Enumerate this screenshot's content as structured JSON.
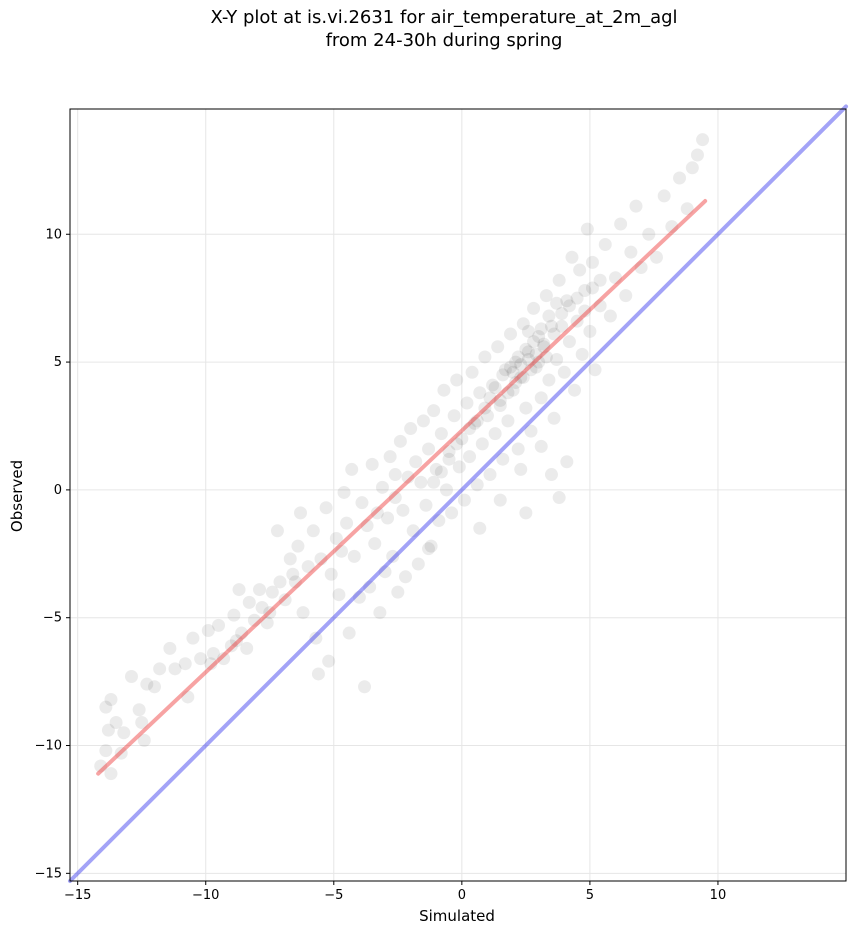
{
  "chart_data": {
    "type": "scatter",
    "title": "X-Y plot at is.vi.2631 for air_temperature_at_2m_agl",
    "subtitle": "from 24-30h during spring",
    "xlabel": "Simulated",
    "ylabel": "Observed",
    "xlim": [
      -15.3,
      15.0
    ],
    "ylim": [
      -15.3,
      14.9
    ],
    "xticks": [
      -15,
      -10,
      -5,
      0,
      5,
      10
    ],
    "yticks": [
      -15,
      -10,
      -5,
      0,
      5,
      10
    ],
    "grid": true,
    "point_color": "#000000",
    "point_alpha": 0.08,
    "regression_line": {
      "color": "#ee3333",
      "x": [
        -14.2,
        9.5
      ],
      "y": [
        -11.1,
        11.3
      ]
    },
    "identity_line": {
      "color": "#3333ee",
      "x": [
        -15.3,
        15.0
      ],
      "y": [
        -15.3,
        15.0
      ]
    },
    "points": [
      [
        -14.1,
        -10.8
      ],
      [
        -13.9,
        -10.2
      ],
      [
        -13.7,
        -11.1
      ],
      [
        -13.8,
        -9.4
      ],
      [
        -13.5,
        -9.1
      ],
      [
        -13.9,
        -8.5
      ],
      [
        -13.7,
        -8.2
      ],
      [
        -13.3,
        -10.3
      ],
      [
        -12.9,
        -7.3
      ],
      [
        -12.6,
        -8.6
      ],
      [
        -12.4,
        -9.8
      ],
      [
        -12.3,
        -7.6
      ],
      [
        -12.0,
        -7.7
      ],
      [
        -11.8,
        -7.0
      ],
      [
        -11.4,
        -6.2
      ],
      [
        -11.2,
        -7.0
      ],
      [
        -10.8,
        -6.8
      ],
      [
        -10.7,
        -8.1
      ],
      [
        -10.5,
        -5.8
      ],
      [
        -10.2,
        -6.6
      ],
      [
        -9.9,
        -5.5
      ],
      [
        -9.8,
        -6.8
      ],
      [
        -9.5,
        -5.3
      ],
      [
        -9.3,
        -6.6
      ],
      [
        -9.0,
        -6.1
      ],
      [
        -8.9,
        -4.9
      ],
      [
        -8.7,
        -3.9
      ],
      [
        -8.6,
        -5.6
      ],
      [
        -8.4,
        -6.2
      ],
      [
        -8.3,
        -4.4
      ],
      [
        -8.1,
        -5.1
      ],
      [
        -7.9,
        -3.9
      ],
      [
        -7.8,
        -4.6
      ],
      [
        -7.6,
        -5.2
      ],
      [
        -7.4,
        -4.0
      ],
      [
        -7.2,
        -1.6
      ],
      [
        -7.1,
        -3.6
      ],
      [
        -6.9,
        -4.3
      ],
      [
        -6.7,
        -2.7
      ],
      [
        -6.6,
        -3.3
      ],
      [
        -6.4,
        -2.2
      ],
      [
        -6.3,
        -0.9
      ],
      [
        -6.2,
        -4.8
      ],
      [
        -6.0,
        -3.0
      ],
      [
        -5.8,
        -1.6
      ],
      [
        -5.7,
        -5.8
      ],
      [
        -5.6,
        -7.2
      ],
      [
        -5.5,
        -2.7
      ],
      [
        -5.3,
        -0.7
      ],
      [
        -5.2,
        -6.7
      ],
      [
        -5.1,
        -3.3
      ],
      [
        -4.9,
        -1.9
      ],
      [
        -4.8,
        -4.1
      ],
      [
        -4.6,
        -0.1
      ],
      [
        -4.5,
        -1.3
      ],
      [
        -4.4,
        -5.6
      ],
      [
        -4.3,
        0.8
      ],
      [
        -4.2,
        -2.6
      ],
      [
        -4.0,
        -4.2
      ],
      [
        -3.9,
        -0.5
      ],
      [
        -3.8,
        -7.7
      ],
      [
        -3.7,
        -1.4
      ],
      [
        -3.6,
        -3.8
      ],
      [
        -3.5,
        1.0
      ],
      [
        -3.4,
        -2.1
      ],
      [
        -3.2,
        -4.8
      ],
      [
        -3.1,
        0.1
      ],
      [
        -3.0,
        -3.2
      ],
      [
        -2.9,
        -1.1
      ],
      [
        -2.8,
        1.3
      ],
      [
        -2.7,
        -2.6
      ],
      [
        -2.6,
        -0.3
      ],
      [
        -2.5,
        -4.0
      ],
      [
        -2.4,
        1.9
      ],
      [
        -2.3,
        -0.8
      ],
      [
        -2.2,
        -3.4
      ],
      [
        -2.1,
        0.5
      ],
      [
        -2.0,
        2.4
      ],
      [
        -1.9,
        -1.6
      ],
      [
        -1.8,
        1.1
      ],
      [
        -1.7,
        -2.9
      ],
      [
        -1.6,
        0.3
      ],
      [
        -1.5,
        2.7
      ],
      [
        -1.4,
        -0.6
      ],
      [
        -1.3,
        1.6
      ],
      [
        -1.2,
        -2.2
      ],
      [
        -1.1,
        3.1
      ],
      [
        -1.0,
        0.8
      ],
      [
        -0.9,
        -1.2
      ],
      [
        -0.8,
        2.2
      ],
      [
        -0.7,
        3.9
      ],
      [
        -0.6,
        0.0
      ],
      [
        -0.5,
        1.5
      ],
      [
        -0.4,
        -0.9
      ],
      [
        -0.3,
        2.9
      ],
      [
        -0.2,
        4.3
      ],
      [
        -0.1,
        0.9
      ],
      [
        0.0,
        2.0
      ],
      [
        0.1,
        -0.4
      ],
      [
        0.2,
        3.4
      ],
      [
        0.3,
        1.3
      ],
      [
        0.4,
        4.6
      ],
      [
        0.5,
        2.6
      ],
      [
        0.6,
        0.2
      ],
      [
        0.7,
        3.8
      ],
      [
        0.8,
        1.8
      ],
      [
        0.9,
        5.2
      ],
      [
        1.0,
        2.9
      ],
      [
        1.1,
        0.6
      ],
      [
        1.2,
        4.1
      ],
      [
        1.3,
        2.2
      ],
      [
        1.4,
        5.6
      ],
      [
        1.5,
        3.3
      ],
      [
        1.6,
        1.2
      ],
      [
        1.7,
        4.7
      ],
      [
        1.8,
        2.7
      ],
      [
        1.9,
        6.1
      ],
      [
        2.0,
        3.9
      ],
      [
        2.1,
        5.0
      ],
      [
        2.2,
        1.6
      ],
      [
        2.3,
        4.4
      ],
      [
        2.4,
        6.5
      ],
      [
        2.5,
        3.2
      ],
      [
        2.6,
        5.4
      ],
      [
        2.7,
        2.3
      ],
      [
        2.8,
        7.1
      ],
      [
        2.9,
        4.8
      ],
      [
        3.0,
        6.0
      ],
      [
        3.1,
        3.6
      ],
      [
        3.2,
        5.7
      ],
      [
        3.3,
        7.6
      ],
      [
        3.4,
        4.3
      ],
      [
        3.5,
        6.4
      ],
      [
        3.6,
        2.8
      ],
      [
        3.7,
        5.1
      ],
      [
        3.8,
        8.2
      ],
      [
        3.9,
        6.9
      ],
      [
        4.0,
        4.6
      ],
      [
        4.1,
        7.4
      ],
      [
        4.2,
        5.8
      ],
      [
        4.3,
        9.1
      ],
      [
        4.4,
        3.9
      ],
      [
        4.5,
        6.6
      ],
      [
        4.6,
        8.6
      ],
      [
        4.7,
        5.3
      ],
      [
        4.8,
        7.8
      ],
      [
        4.9,
        10.2
      ],
      [
        5.0,
        6.2
      ],
      [
        5.1,
        8.9
      ],
      [
        5.2,
        4.7
      ],
      [
        5.4,
        7.2
      ],
      [
        5.6,
        9.6
      ],
      [
        5.8,
        6.8
      ],
      [
        6.0,
        8.3
      ],
      [
        6.2,
        10.4
      ],
      [
        6.4,
        7.6
      ],
      [
        6.6,
        9.3
      ],
      [
        6.8,
        11.1
      ],
      [
        7.0,
        8.7
      ],
      [
        7.3,
        10.0
      ],
      [
        7.6,
        9.1
      ],
      [
        7.9,
        11.5
      ],
      [
        8.2,
        10.3
      ],
      [
        8.5,
        12.2
      ],
      [
        8.8,
        11.0
      ],
      [
        9.0,
        12.6
      ],
      [
        9.2,
        13.1
      ],
      [
        9.4,
        13.7
      ],
      [
        1.3,
        4.0
      ],
      [
        1.6,
        4.5
      ],
      [
        1.9,
        4.8
      ],
      [
        2.2,
        5.2
      ],
      [
        2.5,
        5.5
      ],
      [
        2.8,
        5.8
      ],
      [
        3.1,
        6.3
      ],
      [
        2.0,
        4.6
      ],
      [
        2.3,
        4.9
      ],
      [
        2.6,
        5.1
      ],
      [
        2.9,
        5.3
      ],
      [
        3.2,
        5.6
      ],
      [
        1.8,
        3.8
      ],
      [
        2.1,
        4.2
      ],
      [
        2.4,
        4.4
      ],
      [
        2.7,
        4.7
      ],
      [
        3.0,
        5.0
      ],
      [
        3.3,
        5.2
      ],
      [
        3.6,
        6.1
      ],
      [
        3.9,
        6.4
      ],
      [
        1.5,
        3.5
      ],
      [
        0.9,
        3.2
      ],
      [
        0.6,
        2.7
      ],
      [
        0.3,
        2.4
      ],
      [
        -0.2,
        1.8
      ],
      [
        -0.5,
        1.2
      ],
      [
        -0.8,
        0.7
      ],
      [
        -1.1,
        0.3
      ],
      [
        4.2,
        7.2
      ],
      [
        4.5,
        7.5
      ],
      [
        4.8,
        7.0
      ],
      [
        5.1,
        7.9
      ],
      [
        5.4,
        8.2
      ],
      [
        3.4,
        6.8
      ],
      [
        3.7,
        7.3
      ],
      [
        2.6,
        6.2
      ],
      [
        1.1,
        3.6
      ],
      [
        -3.3,
        -0.9
      ],
      [
        -2.6,
        0.6
      ],
      [
        -4.7,
        -2.4
      ],
      [
        -6.5,
        -3.6
      ],
      [
        -7.5,
        -4.8
      ],
      [
        -8.8,
        -5.9
      ],
      [
        -9.7,
        -6.4
      ],
      [
        -12.5,
        -9.1
      ],
      [
        -13.2,
        -9.5
      ],
      [
        0.7,
        -1.5
      ],
      [
        1.5,
        -0.4
      ],
      [
        2.3,
        0.8
      ],
      [
        3.1,
        1.7
      ],
      [
        3.8,
        -0.3
      ],
      [
        4.1,
        1.1
      ],
      [
        3.5,
        0.6
      ],
      [
        2.5,
        -0.9
      ],
      [
        -1.3,
        -2.3
      ]
    ]
  }
}
